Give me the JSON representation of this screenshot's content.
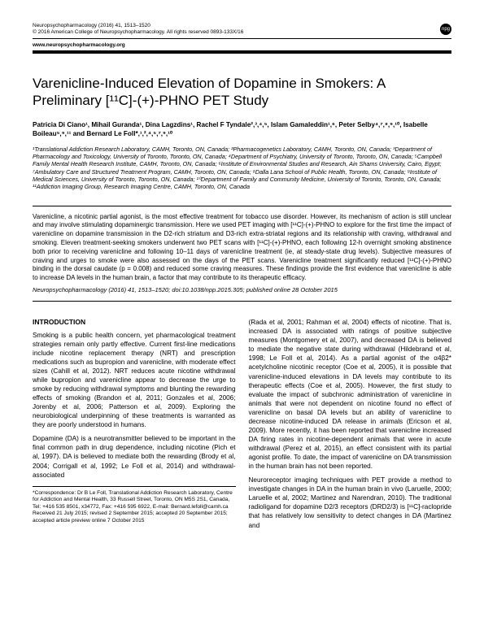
{
  "header": {
    "journal_ref": "Neuropsychopharmacology (2016) 41, 1513–1520",
    "copyright": "© 2016 American College of Neuropsychopharmacology.   All rights reserved 0893-133X/16",
    "website": "www.neuropsychopharmacology.org",
    "badge": "npg"
  },
  "title": "Varenicline-Induced Elevation of Dopamine in Smokers: A Preliminary [¹¹C]-(+)-PHNO PET Study",
  "authors_html": "Patricia Di Ciano¹, Mihail Guranda¹, Dina Lagzdins¹, Rachel F Tyndale²,³,⁴,⁵, Islam Gamaleddin¹,⁶, Peter Selby⁴,⁷,⁸,⁹,¹⁰, Isabelle Boileau⁵,⁹,¹¹ and Bernard Le Foll*,¹,²,⁴,⁵,⁷,⁹,¹⁰",
  "affiliations": "¹Translational Addiction Research Laboratory, CAMH, Toronto, ON, Canada; ²Pharmacogenetics Laboratory, CAMH, Toronto, ON, Canada; ³Department of Pharmacology and Toxicology, University of Toronto, Toronto, ON, Canada; ⁴Department of Psychiatry, University of Toronto, Toronto, ON, Canada; ⁵Campbell Family Mental Health Research Institute, CAMH, Toronto, ON, Canada; ⁶Institute of Environmental Studies and Research, Ain Shams University, Cairo, Egypt; ⁷Ambulatory Care and Structured Treatment Program, CAMH, Toronto, ON, Canada; ⁸Dalla Lana School of Public Health, Toronto, ON, Canada; ⁹Institute of Medical Sciences, University of Toronto, Toronto, ON, Canada; ¹⁰Department of Family and Community Medicine, University of Toronto, Toronto, ON, Canada; ¹¹Addiction Imaging Group, Research Imaging Centre, CAMH, Toronto, ON, Canada",
  "abstract": "Varenicline, a nicotinic partial agonist, is the most effective treatment for tobacco use disorder. However, its mechanism of action is still unclear and may involve stimulating dopaminergic transmission. Here we used PET imaging with [¹¹C]-(+)-PHNO to explore for the first time the impact of varenicline on dopamine transmission in the D2-rich striatum and D3-rich extra-striatal regions and its relationship with craving, withdrawal and smoking. Eleven treatment-seeking smokers underwent two PET scans with [¹¹C]-(+)-PHNO, each following 12-h overnight smoking abstinence both prior to receiving varenicline and following 10–11 days of varenicline treatment (ie, at steady-state drug levels). Subjective measures of craving and urges to smoke were also assessed on the days of the PET scans. Varenicline treatment significantly reduced [¹¹C]-(+)-PHNO binding in the dorsal caudate (p = 0.008) and reduced some craving measures. These findings provide the first evidence that varenicline is able to increase DA levels in the human brain, a factor that may contribute to its therapeutic efficacy.",
  "abstract_citation": "Neuropsychopharmacology (2016) 41, 1513–1520; doi:10.1038/npp.2015.305; published online 28 October 2015",
  "intro_heading": "INTRODUCTION",
  "intro_p1": "Smoking is a public health concern, yet pharmacological treatment strategies remain only partly effective. Current first-line medications include nicotine replacement therapy (NRT) and prescription medications such as bupropion and varenicline, with moderate effect sizes (Cahill et al, 2012). NRT reduces acute nicotine withdrawal while bupropion and varenicline appear to decrease the urge to smoke by reducing withdrawal symptoms and blunting the rewarding effects of smoking (Brandon et al, 2011; Gonzales et al, 2006; Jorenby et al, 2006; Patterson et al, 2009). Exploring the neurobiological underpinning of these treatments is warranted as they are poorly understood in humans.",
  "intro_p2": "Dopamine (DA) is a neurotransmitter believed to be important in the final common path in drug dependence, including nicotine (Pich et al, 1997). DA is believed to mediate both the rewarding (Brody et al, 2004; Corrigall et al, 1992; Le Foll et al, 2014) and withdrawal-associated",
  "col2_p1": "(Rada et al, 2001; Rahman et al, 2004) effects of nicotine. That is, increased DA is associated with ratings of positive subjective measures (Montgomery et al, 2007), and decreased DA is believed to mediate the negative state during withdrawal (Hildebrand et al, 1998; Le Foll et al, 2014). As a partial agonist of the α4β2* acetylcholine nicotinic receptor (Coe et al, 2005), it is possible that varenicline-induced elevations in DA levels may contribute to its therapeutic effects (Coe et al, 2005). However, the first study to evaluate the impact of subchronic administration of varenicline in animals that were not dependent on nicotine found no effect of varenicline on basal DA levels but an ability of varenicline to decrease nicotine-induced DA release in animals (Ericson et al, 2009). More recently, it has been reported that varenicline increased DA firing rates in nicotine-dependent animals that were in acute withdrawal (Perez et al, 2015), an effect consistent with its partial agonist profile. To date, the impact of varenicline on DA transmission in the human brain has not been reported.",
  "col2_p2": "Neuroreceptor imaging techniques with PET provide a method to investigate changes in DA in the human brain in vivo (Laruelle, 2000; Laruelle et al, 2002; Martinez and Narendran, 2010). The traditional radioligand for dopamine D2/3 receptors (DRD2/3) is [¹¹C]-raclopride that has relatively low sensitivity to detect changes in DA (Martinez and",
  "footnote": "*Correspondence: Dr B Le Foll, Translational Addiction Research Laboratory, Centre for Addiction and Mental Health, 33 Russell Street, Toronto, ON M5S 2S1, Canada, Tel: +416 535 8501, x34772, Fax: +416 595 6922, E-mail: Bernard.lefoll@camh.ca\nReceived 21 July 2015; revised 2 September 2015; accepted 20 September 2015; accepted article preview online 7 October 2015"
}
